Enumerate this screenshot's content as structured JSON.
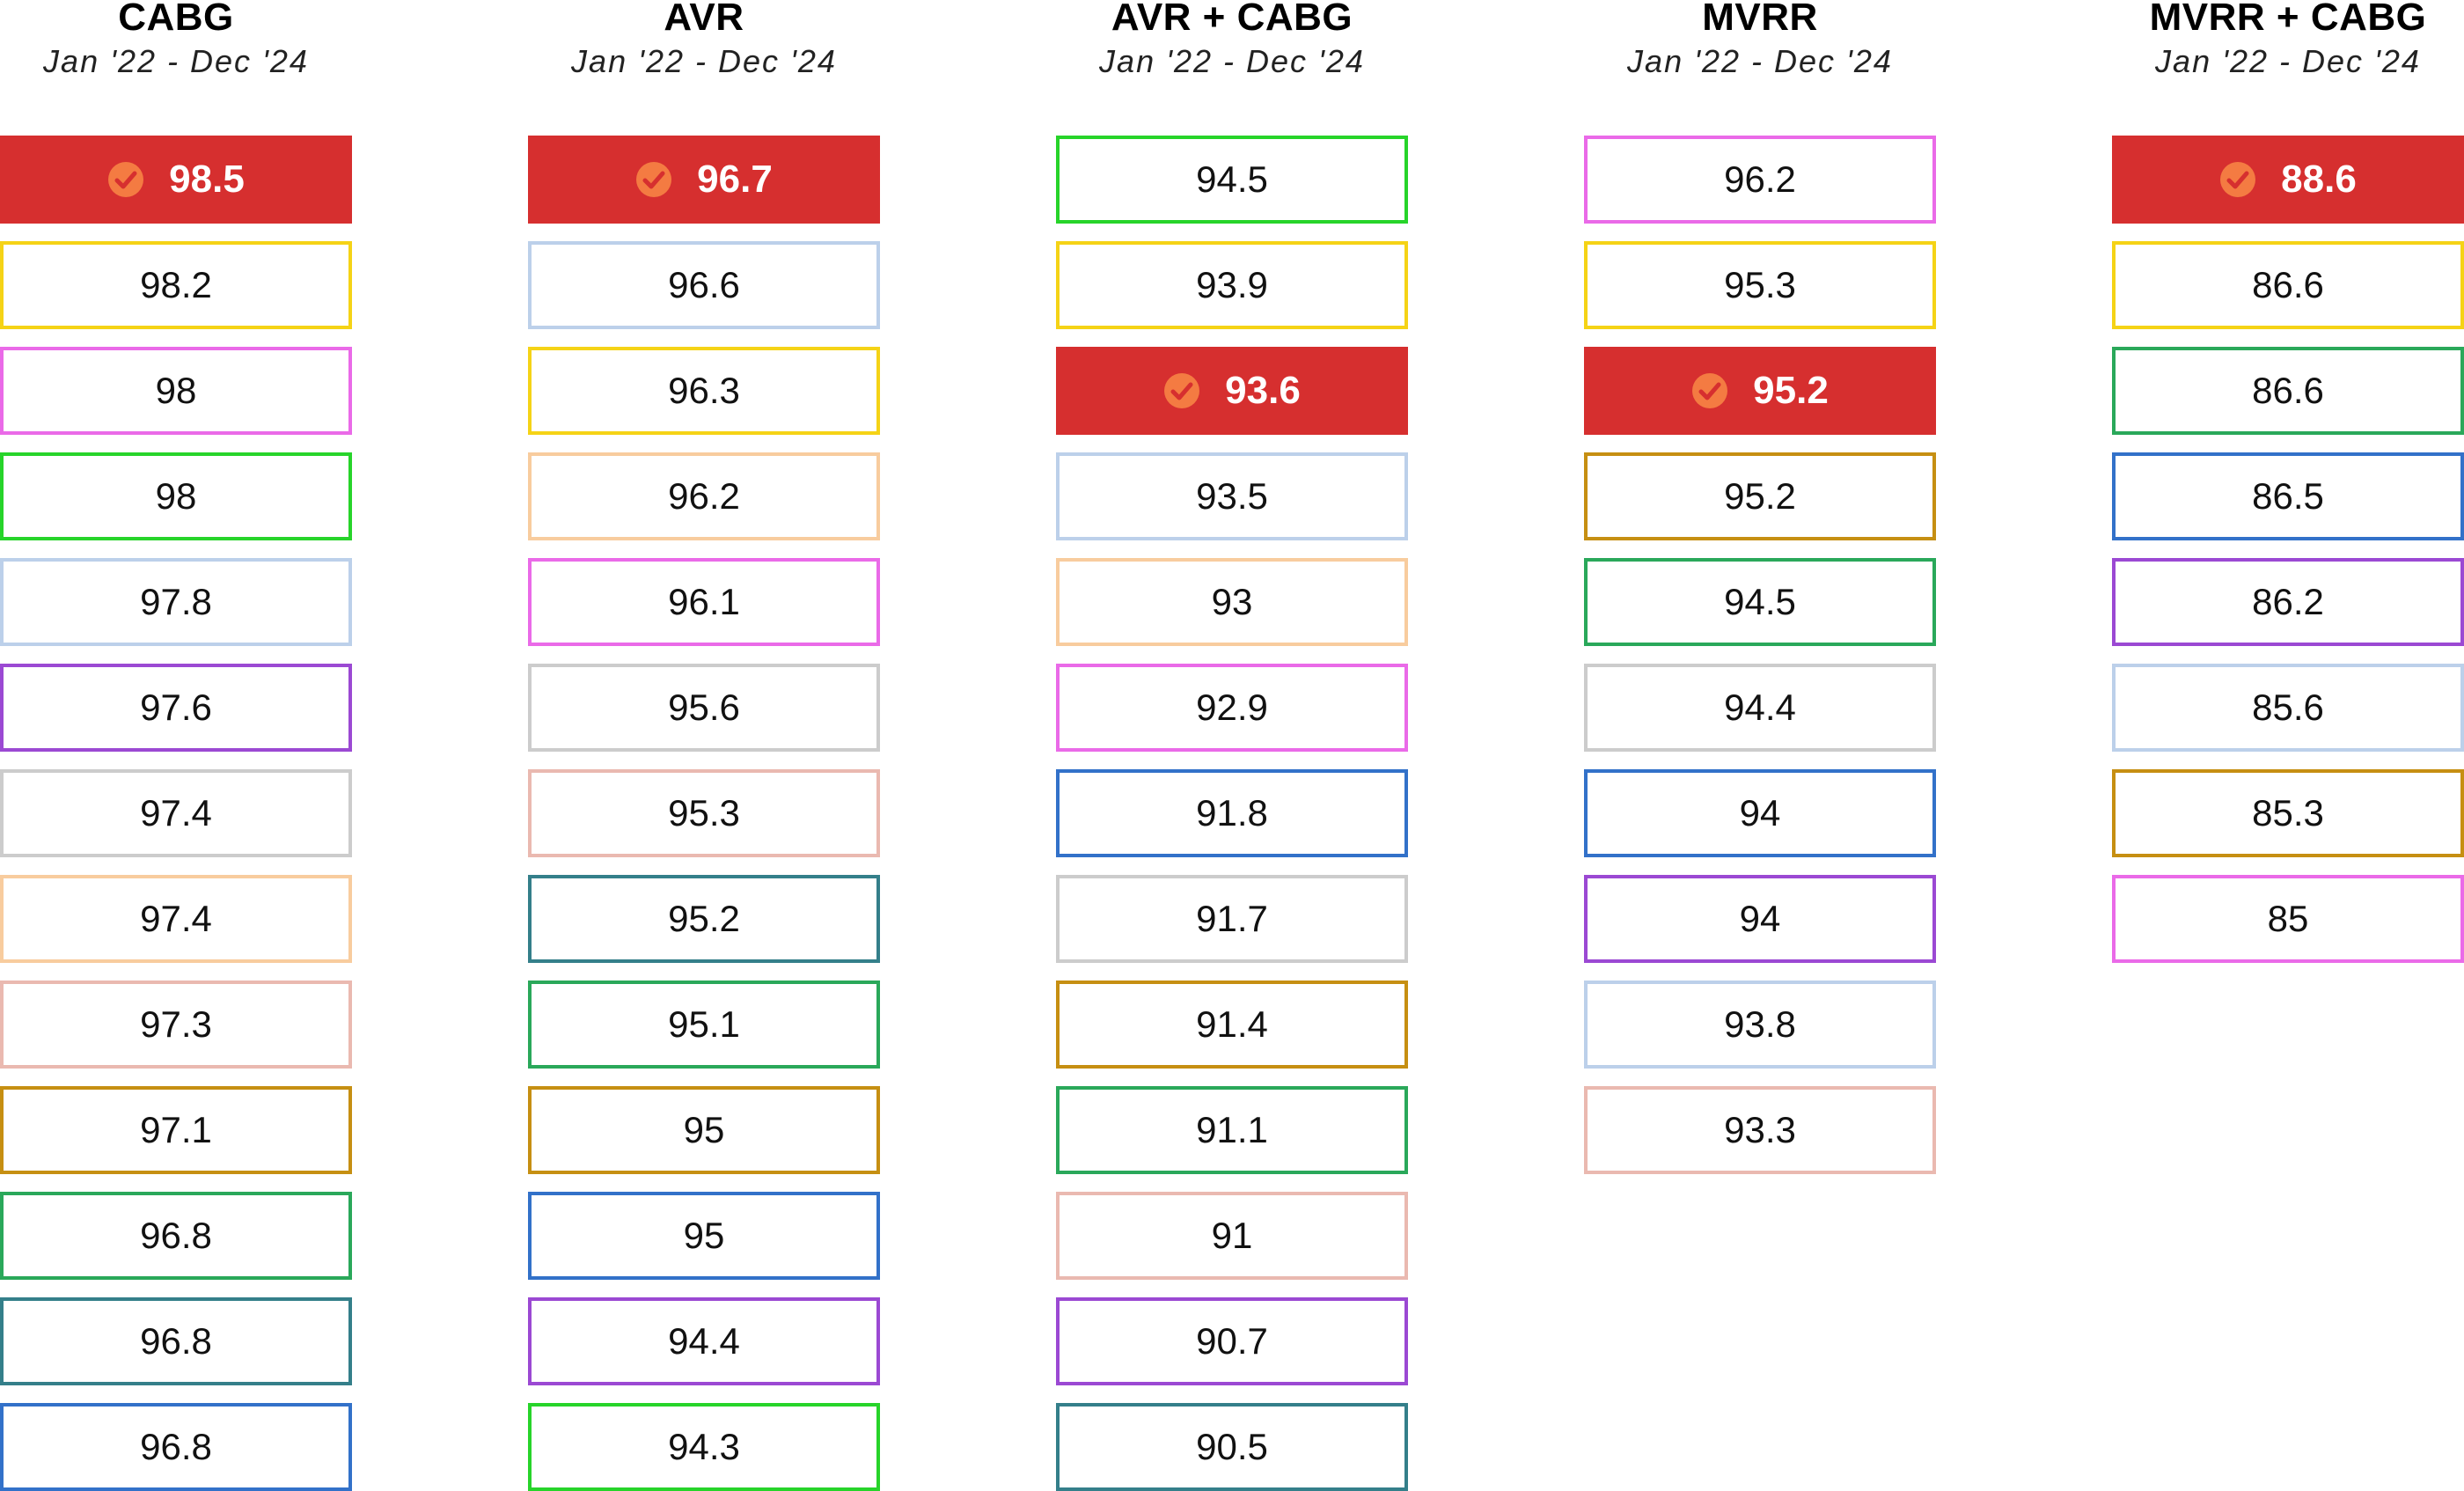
{
  "chart_data": {
    "type": "table",
    "columns": [
      {
        "title": "CABG",
        "subtitle": "Jan '22 - Dec '24",
        "values": [
          "98.5",
          "98.2",
          "98",
          "98",
          "97.8",
          "97.6",
          "97.4",
          "97.4",
          "97.3",
          "97.1",
          "96.8",
          "96.8",
          "96.8"
        ],
        "highlight": [
          0
        ],
        "border_colors": [
          "#d62f2f",
          "#f5d316",
          "#ea6ae8",
          "#27d42a",
          "#bcd0ea",
          "#9b49d3",
          "#cccccc",
          "#f8cc9e",
          "#eab9b0",
          "#c68f12",
          "#2aa85a",
          "#347f8a",
          "#3271c9"
        ]
      },
      {
        "title": "AVR",
        "subtitle": "Jan '22 - Dec '24",
        "values": [
          "96.7",
          "96.6",
          "96.3",
          "96.2",
          "96.1",
          "95.6",
          "95.3",
          "95.2",
          "95.1",
          "95",
          "95",
          "94.4",
          "94.3"
        ],
        "highlight": [
          0
        ],
        "border_colors": [
          "#d62f2f",
          "#bcd0ea",
          "#f5d316",
          "#f8cc9e",
          "#ea6ae8",
          "#cccccc",
          "#eab9b0",
          "#347f8a",
          "#2aa85a",
          "#c68f12",
          "#3271c9",
          "#9b49d3",
          "#27d42a"
        ]
      },
      {
        "title": "AVR + CABG",
        "subtitle": "Jan '22 - Dec '24",
        "values": [
          "94.5",
          "93.9",
          "93.6",
          "93.5",
          "93",
          "92.9",
          "91.8",
          "91.7",
          "91.4",
          "91.1",
          "91",
          "90.7",
          "90.5"
        ],
        "highlight": [
          2
        ],
        "border_colors": [
          "#27d42a",
          "#f5d316",
          "#d62f2f",
          "#bcd0ea",
          "#f8cc9e",
          "#ea6ae8",
          "#3271c9",
          "#cccccc",
          "#c68f12",
          "#2aa85a",
          "#eab9b0",
          "#9b49d3",
          "#347f8a"
        ]
      },
      {
        "title": "MVRR",
        "subtitle": "Jan '22 - Dec '24",
        "values": [
          "96.2",
          "95.3",
          "95.2",
          "95.2",
          "94.5",
          "94.4",
          "94",
          "94",
          "93.8",
          "93.3"
        ],
        "highlight": [
          2
        ],
        "border_colors": [
          "#ea6ae8",
          "#f5d316",
          "#d62f2f",
          "#c68f12",
          "#2aa85a",
          "#cccccc",
          "#3271c9",
          "#9b49d3",
          "#bcd0ea",
          "#eab9b0"
        ]
      },
      {
        "title": "MVRR + CABG",
        "subtitle": "Jan '22 - Dec '24",
        "values": [
          "88.6",
          "86.6",
          "86.6",
          "86.5",
          "86.2",
          "85.6",
          "85.3",
          "85"
        ],
        "highlight": [
          0
        ],
        "border_colors": [
          "#d62f2f",
          "#f5d316",
          "#2aa85a",
          "#3271c9",
          "#9b49d3",
          "#bcd0ea",
          "#c68f12",
          "#ea6ae8"
        ]
      }
    ],
    "highlight_fill": "#d62f2f",
    "badge_color": "#f47b42",
    "badge_icon": "check-circle-icon"
  }
}
